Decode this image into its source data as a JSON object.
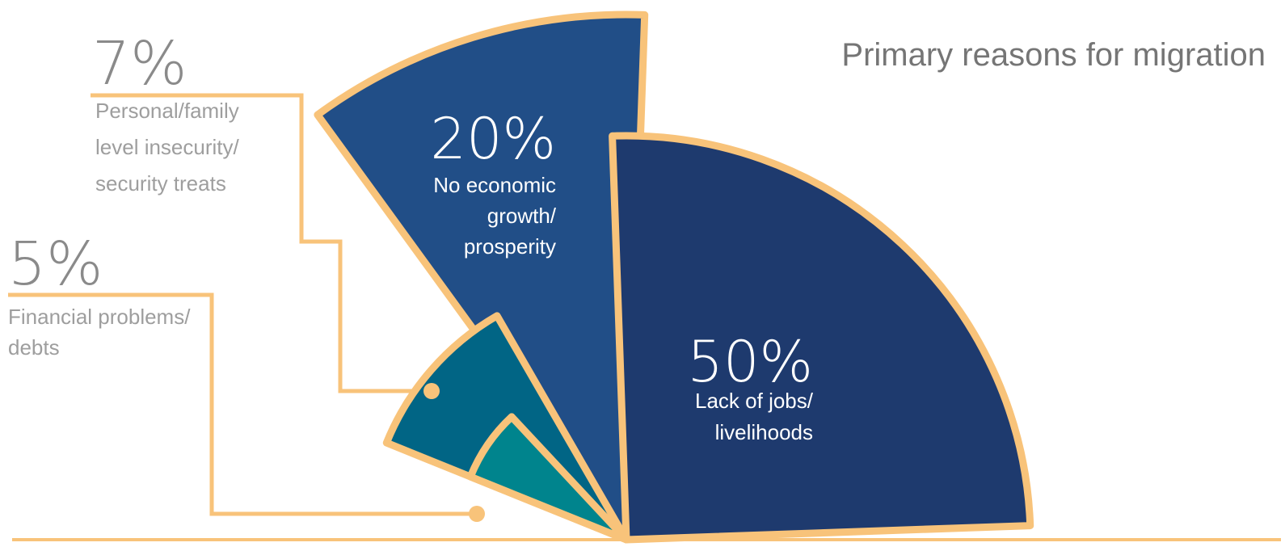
{
  "chart_data": {
    "type": "pie",
    "variant": "rose (proportional-radius sectors on a half circle)",
    "title": "Primary reasons for migration",
    "slices": [
      {
        "pct_label": "5%",
        "value": 5,
        "label_lines": [
          "Financial problems/",
          "debts"
        ]
      },
      {
        "pct_label": "7%",
        "value": 7,
        "label_lines": [
          "Personal/family",
          "level insecurity/",
          "security treats"
        ]
      },
      {
        "pct_label": "20%",
        "value": 20,
        "label_lines": [
          "No economic",
          "growth/",
          "prosperity"
        ]
      },
      {
        "pct_label": "50%",
        "value": 50,
        "label_lines": [
          "Lack of jobs/",
          "livelihoods"
        ]
      }
    ]
  },
  "colors": {
    "outline": "#F8C37A",
    "slice_financial": "#00848D",
    "slice_security": "#016585",
    "slice_growth": "#214E87",
    "slice_jobs": "#1E3A6E",
    "inside_text": "#FFFFFF",
    "outside_text": "#9E9E9E",
    "outside_pct": "#8A8A8A",
    "title": "#757575"
  }
}
